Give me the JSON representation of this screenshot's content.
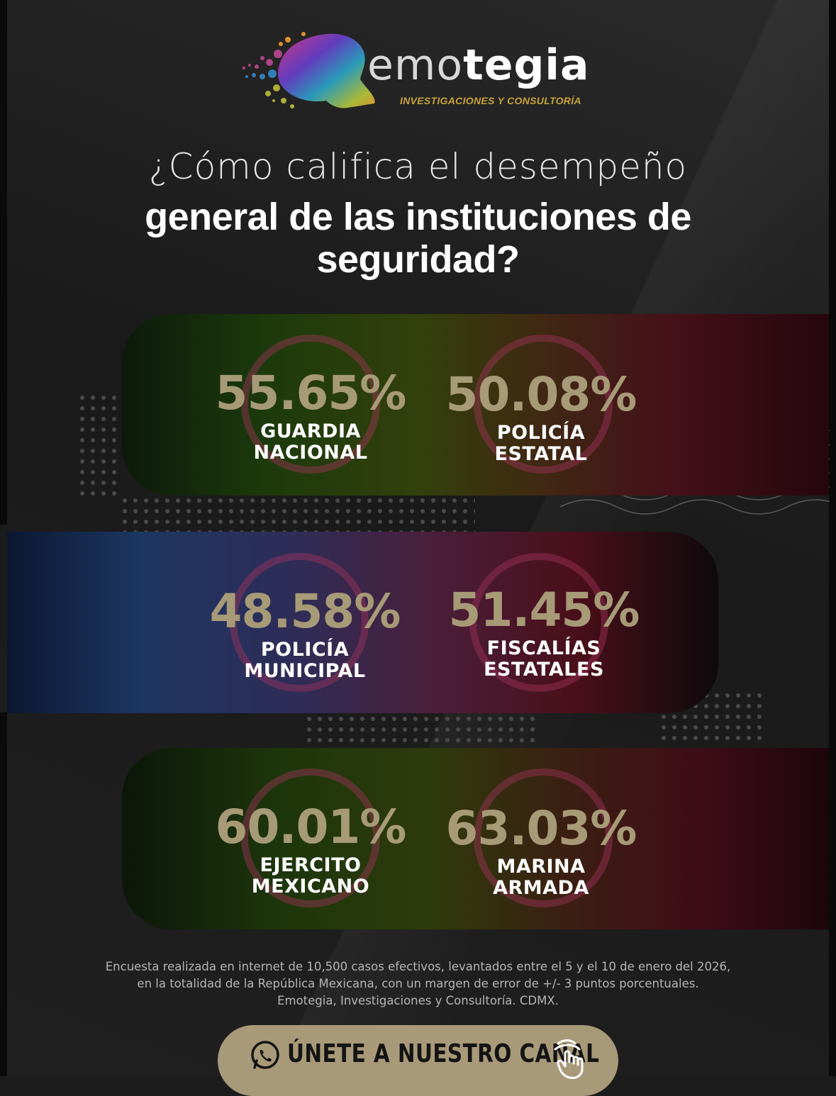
{
  "brand": {
    "word_light": "emo",
    "word_bold": "tegia",
    "tagline": "INVESTIGACIONES Y CONSULTORÍA",
    "accent": "#c9a23a"
  },
  "question": {
    "line1": "¿Cómo califica el desempeño",
    "line2": "general de las instituciones de",
    "line3": "seguridad?"
  },
  "results": [
    {
      "percent": "55.65%",
      "label_1": "GUARDIA",
      "label_2": "NACIONAL"
    },
    {
      "percent": "50.08%",
      "label_1": "POLICÍA",
      "label_2": "ESTATAL"
    },
    {
      "percent": "48.58%",
      "label_1": "POLICÍA",
      "label_2": "MUNICIPAL"
    },
    {
      "percent": "51.45%",
      "label_1": "FISCALÍAS",
      "label_2": "ESTATALES"
    },
    {
      "percent": "60.01%",
      "label_1": "EJERCITO",
      "label_2": "MEXICANO"
    },
    {
      "percent": "63.03%",
      "label_1": "MARINA",
      "label_2": "ARMADA"
    }
  ],
  "methodology": {
    "line1": "Encuesta realizada en internet de 10,500 casos efectivos, levantados entre el 5 y el 10 de enero del 2026,",
    "line2": "en la totalidad de la República Mexicana, con un margen de error de +/- 3 puntos porcentuales.",
    "line3": "Emotegia, Investigaciones y Consultoría. CDMX."
  },
  "cta": {
    "label": "ÚNETE A NUESTRO CANAL",
    "icon": "whatsapp-icon",
    "pointer_icon": "hand-pointer-icon"
  },
  "colors": {
    "percent_text": "#a79a77",
    "cta_background": "#a89a79"
  }
}
